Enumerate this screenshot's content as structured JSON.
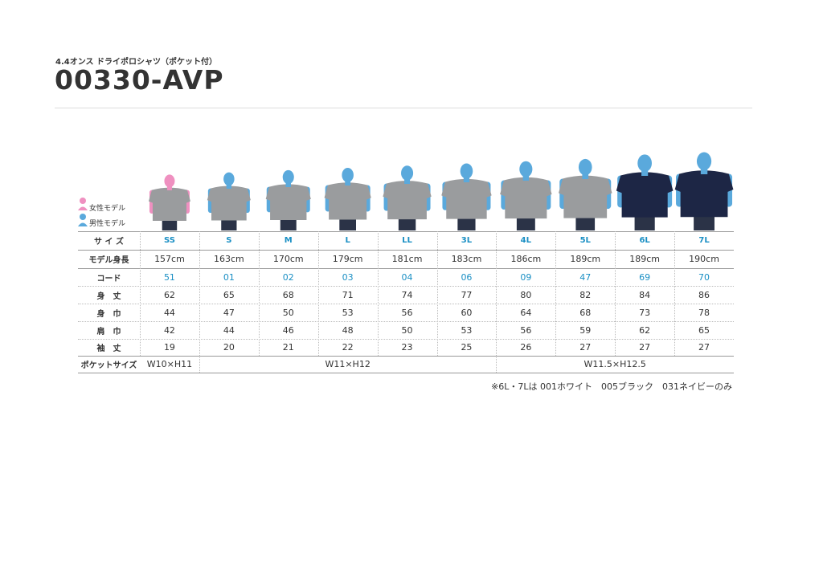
{
  "header": {
    "subtitle": "4.4オンス ドライポロシャツ（ポケット付）",
    "title": "00330-AVP"
  },
  "legend": {
    "female": "女性モデル",
    "male": "男性モデル"
  },
  "table": {
    "rows": [
      [
        "サ イ ズ",
        "SS",
        "S",
        "M",
        "L",
        "LL",
        "3L",
        "4L",
        "5L",
        "6L",
        "7L"
      ],
      [
        "モデル身長",
        "157cm",
        "163cm",
        "170cm",
        "179cm",
        "181cm",
        "183cm",
        "186cm",
        "189cm",
        "189cm",
        "190cm"
      ],
      [
        "コード",
        "51",
        "01",
        "02",
        "03",
        "04",
        "06",
        "09",
        "47",
        "69",
        "70"
      ],
      [
        "身　丈",
        62,
        65,
        68,
        71,
        74,
        77,
        80,
        82,
        84,
        86
      ],
      [
        "身　巾",
        44,
        47,
        50,
        53,
        56,
        60,
        64,
        68,
        73,
        78
      ],
      [
        "肩　巾",
        42,
        44,
        46,
        48,
        50,
        53,
        56,
        59,
        62,
        65
      ],
      [
        "袖　丈",
        19,
        20,
        21,
        22,
        23,
        25,
        26,
        27,
        27,
        27
      ]
    ],
    "pocket": [
      "ポケットサイズ",
      "W10×H11",
      "W11×H12",
      "W11.5×H12.5"
    ]
  },
  "note": "※6L・7Lは 001ホワイト　005ブラック　031ネイビーのみ"
}
